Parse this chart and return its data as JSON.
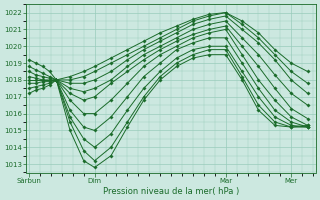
{
  "xlabel": "Pression niveau de la mer( hPa )",
  "bg_color": "#cce8e0",
  "grid_color": "#99ccbb",
  "line_color": "#1a6b2a",
  "marker": "D",
  "marker_size": 1.8,
  "linewidth": 0.7,
  "ylim": [
    1012.5,
    1022.5
  ],
  "yticks": [
    1013,
    1014,
    1015,
    1016,
    1017,
    1018,
    1019,
    1020,
    1021,
    1022
  ],
  "day_labels": [
    "Sàrbun",
    "Dim",
    "Mar",
    "Mer"
  ],
  "day_positions": [
    0,
    48,
    144,
    192
  ],
  "xlim": [
    -2,
    210
  ],
  "convergence_x": 20,
  "convergence_y": 1018.0,
  "series": [
    {
      "x": [
        20,
        30,
        40,
        48,
        60,
        72,
        84,
        96,
        108,
        120,
        132,
        144,
        156,
        168,
        180,
        192,
        204
      ],
      "y": [
        1018.0,
        1018.2,
        1018.5,
        1018.8,
        1019.3,
        1019.8,
        1020.3,
        1020.8,
        1021.2,
        1021.6,
        1021.9,
        1022.0,
        1021.5,
        1020.8,
        1019.8,
        1019.0,
        1018.5
      ]
    },
    {
      "x": [
        20,
        30,
        40,
        48,
        60,
        72,
        84,
        96,
        108,
        120,
        132,
        144,
        156,
        168,
        180,
        192,
        204
      ],
      "y": [
        1018.0,
        1018.0,
        1018.2,
        1018.5,
        1019.0,
        1019.5,
        1020.0,
        1020.5,
        1021.0,
        1021.5,
        1021.8,
        1022.0,
        1021.3,
        1020.5,
        1019.5,
        1018.5,
        1017.8
      ]
    },
    {
      "x": [
        20,
        30,
        40,
        48,
        60,
        72,
        84,
        96,
        108,
        120,
        132,
        144,
        156,
        168,
        180,
        192,
        204
      ],
      "y": [
        1018.0,
        1017.8,
        1017.8,
        1018.0,
        1018.5,
        1019.2,
        1019.8,
        1020.3,
        1020.8,
        1021.3,
        1021.6,
        1021.8,
        1021.0,
        1020.2,
        1019.2,
        1018.0,
        1017.2
      ]
    },
    {
      "x": [
        20,
        30,
        40,
        48,
        60,
        72,
        84,
        96,
        108,
        120,
        132,
        144,
        156,
        168,
        180,
        192,
        204
      ],
      "y": [
        1018.0,
        1017.5,
        1017.3,
        1017.5,
        1018.0,
        1018.8,
        1019.5,
        1020.0,
        1020.5,
        1021.0,
        1021.3,
        1021.5,
        1020.5,
        1019.5,
        1018.3,
        1017.2,
        1016.5
      ]
    },
    {
      "x": [
        20,
        30,
        40,
        48,
        60,
        72,
        84,
        96,
        108,
        120,
        132,
        144,
        156,
        168,
        180,
        192,
        204
      ],
      "y": [
        1018.0,
        1017.2,
        1016.8,
        1017.0,
        1017.8,
        1018.5,
        1019.2,
        1019.8,
        1020.3,
        1020.7,
        1021.0,
        1021.2,
        1020.0,
        1018.8,
        1017.5,
        1016.3,
        1015.7
      ]
    },
    {
      "x": [
        20,
        30,
        40,
        48,
        60,
        72,
        84,
        96,
        108,
        120,
        132,
        144,
        156,
        168,
        180,
        192,
        204
      ],
      "y": [
        1018.0,
        1016.8,
        1016.0,
        1016.0,
        1016.8,
        1017.8,
        1018.8,
        1019.5,
        1020.0,
        1020.5,
        1020.8,
        1021.0,
        1019.5,
        1018.0,
        1016.8,
        1015.8,
        1015.3
      ]
    },
    {
      "x": [
        20,
        30,
        40,
        48,
        60,
        72,
        84,
        96,
        108,
        120,
        132,
        144,
        156,
        168,
        180,
        192,
        204
      ],
      "y": [
        1018.0,
        1016.2,
        1015.2,
        1015.0,
        1015.8,
        1017.0,
        1018.2,
        1019.0,
        1019.8,
        1020.2,
        1020.5,
        1020.5,
        1019.0,
        1017.5,
        1016.2,
        1015.5,
        1015.2
      ]
    },
    {
      "x": [
        20,
        30,
        40,
        48,
        60,
        72,
        84,
        96,
        108,
        120,
        132,
        144,
        156,
        168,
        180,
        192,
        204
      ],
      "y": [
        1018.0,
        1015.8,
        1014.5,
        1014.0,
        1014.8,
        1016.2,
        1017.5,
        1018.5,
        1019.3,
        1019.8,
        1020.0,
        1020.0,
        1018.5,
        1017.0,
        1015.8,
        1015.3,
        1015.2
      ]
    },
    {
      "x": [
        20,
        30,
        40,
        48,
        60,
        72,
        84,
        96,
        108,
        120,
        132,
        144,
        156,
        168,
        180,
        192,
        204
      ],
      "y": [
        1018.0,
        1015.5,
        1013.8,
        1013.2,
        1014.0,
        1015.5,
        1017.0,
        1018.2,
        1019.0,
        1019.5,
        1019.8,
        1019.8,
        1018.2,
        1016.5,
        1015.5,
        1015.2,
        1015.2
      ]
    },
    {
      "x": [
        20,
        30,
        40,
        48,
        60,
        72,
        84,
        96,
        108,
        120,
        132,
        144,
        156,
        168,
        180,
        192,
        204
      ],
      "y": [
        1018.0,
        1015.0,
        1013.2,
        1012.8,
        1013.5,
        1015.2,
        1016.8,
        1018.0,
        1018.8,
        1019.3,
        1019.5,
        1019.5,
        1018.0,
        1016.2,
        1015.3,
        1015.2,
        1015.3
      ]
    },
    {
      "x": [
        0,
        5,
        10,
        15,
        20
      ],
      "y": [
        1019.2,
        1019.0,
        1018.8,
        1018.5,
        1018.0
      ]
    },
    {
      "x": [
        0,
        5,
        10,
        15,
        20
      ],
      "y": [
        1018.8,
        1018.6,
        1018.4,
        1018.2,
        1018.0
      ]
    },
    {
      "x": [
        0,
        5,
        10,
        15,
        20
      ],
      "y": [
        1018.5,
        1018.3,
        1018.2,
        1018.1,
        1018.0
      ]
    },
    {
      "x": [
        0,
        5,
        10,
        15,
        20
      ],
      "y": [
        1018.2,
        1018.1,
        1018.0,
        1018.0,
        1018.0
      ]
    },
    {
      "x": [
        0,
        5,
        10,
        15,
        20
      ],
      "y": [
        1018.0,
        1018.0,
        1018.0,
        1018.0,
        1018.0
      ]
    },
    {
      "x": [
        0,
        5,
        10,
        15,
        20
      ],
      "y": [
        1017.8,
        1017.8,
        1017.9,
        1017.9,
        1018.0
      ]
    },
    {
      "x": [
        0,
        5,
        10,
        15,
        20
      ],
      "y": [
        1017.5,
        1017.6,
        1017.7,
        1017.8,
        1018.0
      ]
    },
    {
      "x": [
        0,
        5,
        10,
        15,
        20
      ],
      "y": [
        1017.2,
        1017.4,
        1017.5,
        1017.7,
        1018.0
      ]
    }
  ]
}
